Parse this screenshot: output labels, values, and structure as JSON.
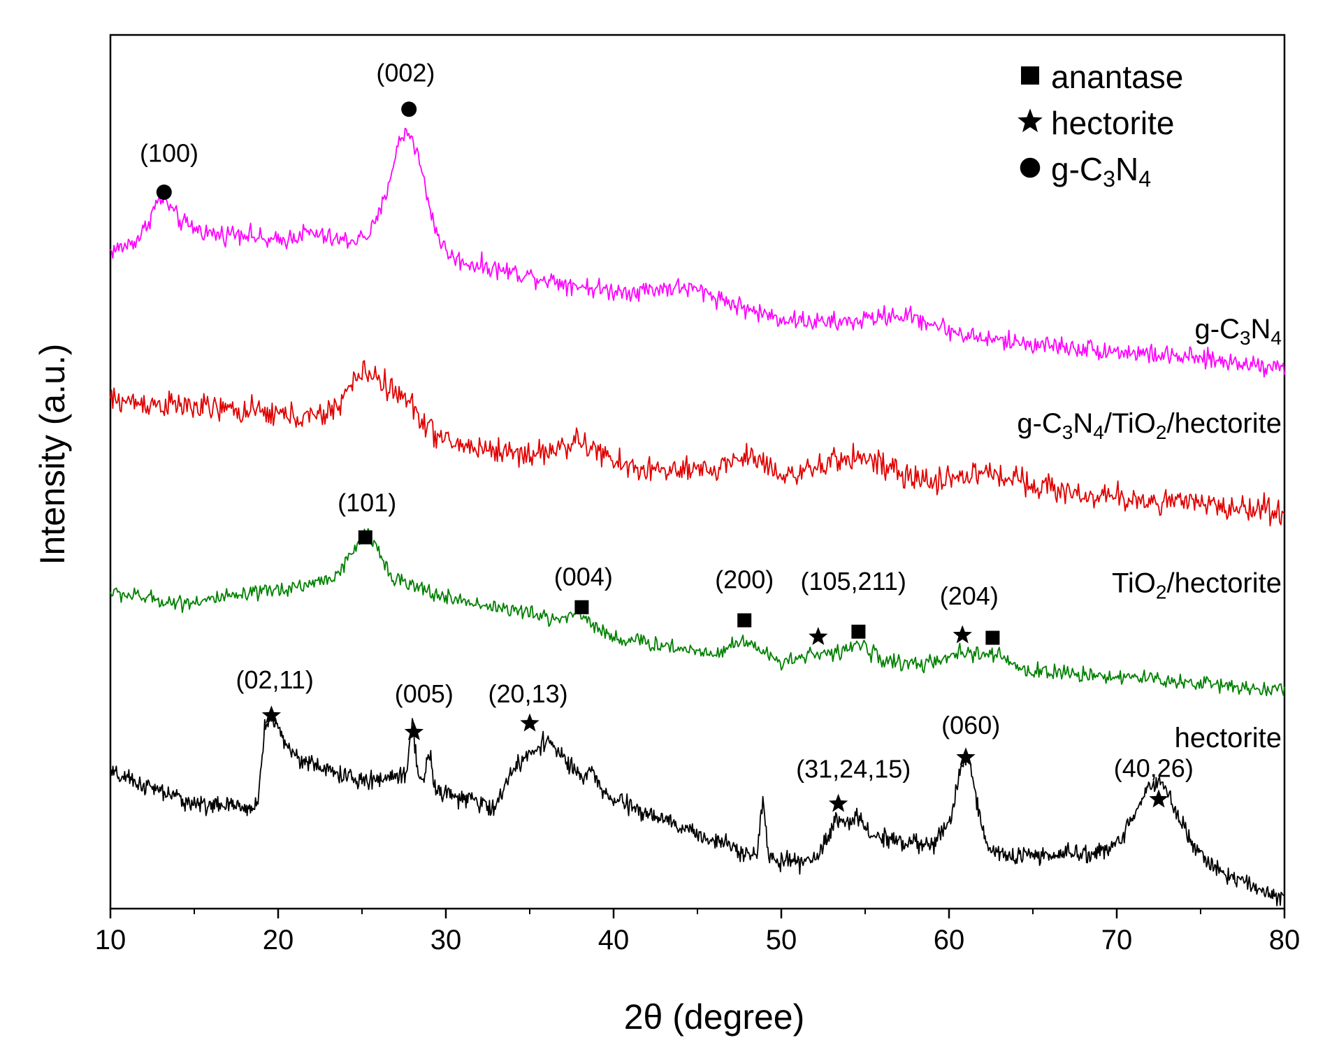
{
  "chart_data": {
    "type": "line",
    "xlabel": "2θ (degree)",
    "ylabel": "Intensity (a.u.)",
    "xlim": [
      10,
      80
    ],
    "ylim": [
      0,
      100
    ],
    "x_ticks": [
      10,
      20,
      30,
      40,
      50,
      60,
      70,
      80
    ],
    "x_tick_labels": [
      "10",
      "20",
      "30",
      "40",
      "50",
      "60",
      "70",
      "80"
    ],
    "grid": false,
    "y_ticks_visible": false,
    "legend": {
      "position": "top-right",
      "entries": [
        {
          "marker": "square",
          "text": "anantase"
        },
        {
          "marker": "star",
          "text": "hectorite"
        },
        {
          "marker": "circle",
          "text_parts": [
            "g-C",
            "3",
            "N",
            "4"
          ]
        }
      ]
    },
    "series": [
      {
        "name": "g-C3N4",
        "label_parts": [
          "g-C",
          "3",
          "N",
          "4"
        ],
        "color": "#ff00ff",
        "noise": 1.1,
        "baseline": [
          [
            10,
            75.2
          ],
          [
            13,
            76.5
          ],
          [
            20,
            76.2
          ],
          [
            25,
            76.5
          ],
          [
            30,
            74.4
          ],
          [
            40,
            70.5
          ],
          [
            50,
            67.5
          ],
          [
            60,
            65.5
          ],
          [
            70,
            63.8
          ],
          [
            80,
            62.0
          ]
        ],
        "peaks": [
          [
            13.0,
            3.2,
            0.6
          ],
          [
            14.0,
            1.8,
            1.6
          ],
          [
            17.8,
            1.0,
            0.8
          ],
          [
            21.7,
            1.0,
            0.9
          ],
          [
            27.7,
            13.5,
            1.0
          ],
          [
            44.5,
            1.8,
            2.2
          ],
          [
            57.3,
            1.8,
            2.0
          ]
        ],
        "points_per_unit": 14
      },
      {
        "name": "g-C3N4/TiO2/hectorite",
        "label_parts": [
          "g-C",
          "3",
          "N",
          "4",
          "/TiO",
          "2",
          "/hectorite"
        ],
        "color": "#e00000",
        "noise": 1.5,
        "baseline": [
          [
            10,
            58.2
          ],
          [
            20,
            56.6
          ],
          [
            25,
            55.3
          ],
          [
            30,
            53.3
          ],
          [
            40,
            50.5
          ],
          [
            50,
            49.3
          ],
          [
            60,
            48.0
          ],
          [
            70,
            47.0
          ],
          [
            80,
            45.5
          ]
        ],
        "peaks": [
          [
            25.3,
            6.0,
            1.2
          ],
          [
            27.7,
            3.0,
            1.0
          ],
          [
            38.0,
            2.2,
            1.3
          ],
          [
            48.0,
            2.2,
            1.2
          ],
          [
            54.5,
            3.0,
            1.8
          ],
          [
            62.5,
            2.0,
            2.5
          ]
        ],
        "points_per_unit": 14
      },
      {
        "name": "TiO2/hectorite",
        "label_parts": [
          "TiO",
          "2",
          "/hectorite"
        ],
        "color": "#008000",
        "noise": 0.9,
        "baseline": [
          [
            10,
            36.2
          ],
          [
            14,
            35.0
          ],
          [
            18,
            35.8
          ],
          [
            22,
            37.2
          ],
          [
            25,
            38.8
          ],
          [
            30,
            35.6
          ],
          [
            35,
            33.8
          ],
          [
            40,
            31.0
          ],
          [
            45,
            29.5
          ],
          [
            50,
            28.5
          ],
          [
            55,
            28.4
          ],
          [
            60,
            27.8
          ],
          [
            70,
            26.6
          ],
          [
            80,
            25.0
          ]
        ],
        "peaks": [
          [
            25.3,
            4.0,
            0.8
          ],
          [
            38.0,
            1.5,
            0.8
          ],
          [
            47.8,
            1.8,
            0.7
          ],
          [
            52.1,
            0.9,
            0.6
          ],
          [
            54.5,
            1.8,
            0.8
          ],
          [
            60.8,
            1.5,
            0.8
          ],
          [
            62.7,
            1.5,
            0.8
          ]
        ],
        "points_per_unit": 14
      },
      {
        "name": "hectorite",
        "label_parts": [
          "hectorite"
        ],
        "color": "#000000",
        "noise": 1.0,
        "baseline": [
          [
            10,
            15.5
          ],
          [
            15,
            12.0
          ],
          [
            18.8,
            11.5
          ],
          [
            19.2,
            19.5
          ],
          [
            22,
            16.5
          ],
          [
            25,
            14.5
          ],
          [
            28,
            15.5
          ],
          [
            30,
            13.2
          ],
          [
            33,
            11.5
          ],
          [
            33.8,
            15.5
          ],
          [
            36,
            19.5
          ],
          [
            38,
            15.0
          ],
          [
            40,
            12.5
          ],
          [
            45,
            8.5
          ],
          [
            50,
            5.2
          ],
          [
            52,
            5.5
          ],
          [
            53,
            8.5
          ],
          [
            55,
            8.5
          ],
          [
            58,
            7.5
          ],
          [
            60,
            6.5
          ],
          [
            65,
            6.0
          ],
          [
            70,
            6.5
          ],
          [
            75,
            5.5
          ],
          [
            78,
            2.5
          ],
          [
            80,
            1.2
          ]
        ],
        "peaks": [
          [
            19.7,
            2.5,
            0.5
          ],
          [
            28.0,
            6.0,
            0.15
          ],
          [
            29.0,
            3.5,
            0.15
          ],
          [
            38.7,
            2.0,
            0.2
          ],
          [
            48.9,
            6.5,
            0.15
          ],
          [
            53.5,
            2.0,
            0.4
          ],
          [
            54.6,
            2.0,
            0.3
          ],
          [
            59.6,
            1.5,
            0.3
          ],
          [
            61.0,
            11.0,
            0.6
          ],
          [
            72.4,
            8.5,
            1.2
          ]
        ],
        "points_per_unit": 20
      }
    ],
    "curve_labels": [
      {
        "series": "g-C3N4",
        "x": 80,
        "y": 65.3
      },
      {
        "series": "g-C3N4/TiO2/hectorite",
        "x": 80,
        "y": 54.5
      },
      {
        "series": "TiO2/hectorite",
        "x": 80,
        "y": 36.2
      },
      {
        "series": "hectorite",
        "x": 80,
        "y": 18.5
      }
    ],
    "annotations": [
      {
        "text": "(100)",
        "marker": "circle",
        "x": 13.2,
        "marker_y": 82.0,
        "label_y": 85.5,
        "label_dx": 0.3
      },
      {
        "text": "(002)",
        "marker": "circle",
        "x": 27.8,
        "marker_y": 91.5,
        "label_y": 94.7,
        "label_dx": -0.2
      },
      {
        "text": "(101)",
        "marker": "square",
        "x": 25.2,
        "marker_y": 42.5,
        "label_y": 45.5,
        "label_dx": 0.1
      },
      {
        "text": "(004)",
        "marker": "square",
        "x": 38.1,
        "marker_y": 34.5,
        "label_y": 37.0,
        "label_dx": 0.1
      },
      {
        "text": "(200)",
        "marker": "square",
        "x": 47.8,
        "marker_y": 33.0,
        "label_y": 36.7,
        "label_dx": 0.0
      },
      {
        "text": "(105,211)",
        "marker": "square",
        "x": 54.6,
        "marker_y": 31.7,
        "label_y": 36.5,
        "label_dx": -0.3
      },
      {
        "text": "",
        "marker": "star",
        "x": 52.2,
        "marker_y": 31.1
      },
      {
        "text": "(204)",
        "marker": "square",
        "x": 62.6,
        "marker_y": 31.0,
        "label_y": 34.8,
        "label_dx": -1.4
      },
      {
        "text": "",
        "marker": "star",
        "x": 60.8,
        "marker_y": 31.3
      },
      {
        "text": "(02,11)",
        "marker": "star",
        "x": 19.6,
        "marker_y": 22.1,
        "label_y": 25.2,
        "label_dx": 0.2
      },
      {
        "text": "(005)",
        "marker": "star",
        "x": 28.1,
        "marker_y": 20.2,
        "label_y": 23.6,
        "label_dx": 0.6
      },
      {
        "text": "(20,13)",
        "marker": "star",
        "x": 35.0,
        "marker_y": 21.2,
        "label_y": 23.6,
        "label_dx": -0.1
      },
      {
        "text": "(060)",
        "marker": "star",
        "x": 61.0,
        "marker_y": 17.3,
        "label_y": 20.0,
        "label_dx": 0.3
      },
      {
        "text": "(31,24,15)",
        "marker": "star",
        "x": 53.4,
        "marker_y": 12.0,
        "label_y": 15.0,
        "label_dx": 0.9
      },
      {
        "text": "(40,26)",
        "marker": "star",
        "x": 72.5,
        "marker_y": 12.5,
        "label_y": 15.1,
        "label_dx": -0.3
      }
    ]
  }
}
